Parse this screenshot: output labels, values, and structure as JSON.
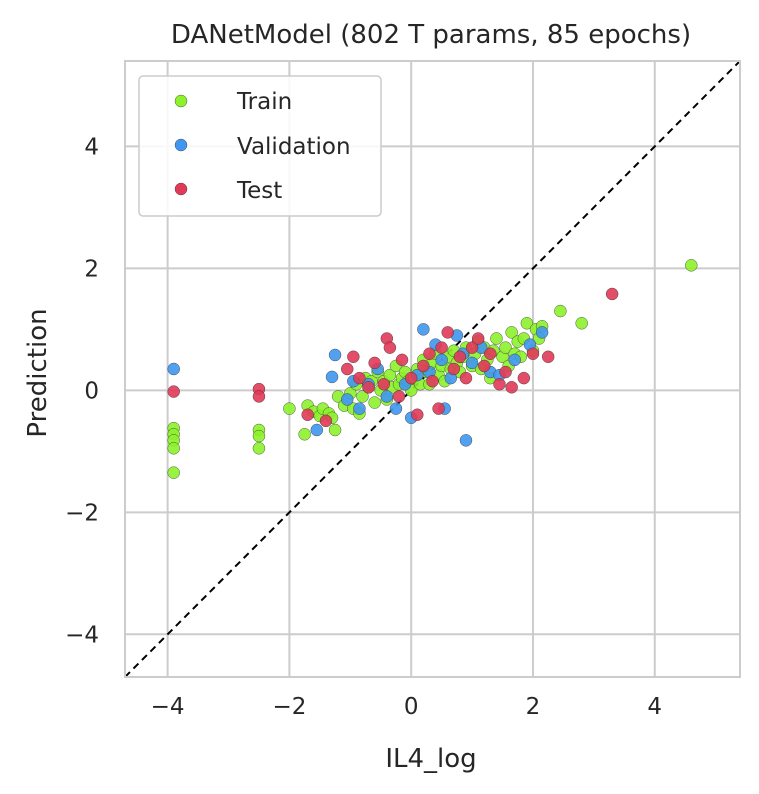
{
  "chart_data": {
    "type": "scatter",
    "title": "DANetModel (802 T params, 85 epochs)",
    "xlabel": "IL4_log",
    "ylabel": "Prediction",
    "xlim": [
      -4.7,
      5.4
    ],
    "ylim": [
      -4.7,
      5.4
    ],
    "xticks": [
      -4,
      -2,
      0,
      2,
      4
    ],
    "yticks": [
      -4,
      -2,
      0,
      2,
      4
    ],
    "xtick_labels": [
      "−4",
      "−2",
      "0",
      "2",
      "4"
    ],
    "ytick_labels": [
      "−4",
      "−2",
      "0",
      "2",
      "4"
    ],
    "grid": true,
    "legend_position": "top-left",
    "identity_line": true,
    "series": [
      {
        "name": "Train",
        "color": "#8cf22a",
        "points": [
          [
            -3.9,
            -0.62
          ],
          [
            -3.9,
            -0.72
          ],
          [
            -3.9,
            -0.82
          ],
          [
            -3.9,
            -0.95
          ],
          [
            -3.9,
            -1.35
          ],
          [
            -2.5,
            -0.65
          ],
          [
            -2.5,
            -0.75
          ],
          [
            -2.5,
            -0.95
          ],
          [
            -2.0,
            -0.3
          ],
          [
            -1.7,
            -0.25
          ],
          [
            -1.75,
            -0.72
          ],
          [
            -1.6,
            -0.35
          ],
          [
            -1.5,
            -0.42
          ],
          [
            -1.45,
            -0.3
          ],
          [
            -1.35,
            -0.38
          ],
          [
            -1.3,
            -0.45
          ],
          [
            -1.25,
            -0.65
          ],
          [
            -1.2,
            -0.1
          ],
          [
            -1.1,
            -0.25
          ],
          [
            -1.0,
            -0.05
          ],
          [
            -0.95,
            -0.3
          ],
          [
            -0.9,
            0.1
          ],
          [
            -0.85,
            -0.38
          ],
          [
            -0.8,
            -0.1
          ],
          [
            -0.75,
            0.2
          ],
          [
            -0.7,
            0.05
          ],
          [
            -0.65,
            0.15
          ],
          [
            -0.6,
            -0.2
          ],
          [
            -0.55,
            0.3
          ],
          [
            -0.5,
            0.0
          ],
          [
            -0.45,
            0.15
          ],
          [
            -0.4,
            -0.15
          ],
          [
            -0.35,
            0.25
          ],
          [
            -0.3,
            0.05
          ],
          [
            -0.25,
            0.4
          ],
          [
            -0.2,
            0.1
          ],
          [
            -0.15,
            0.2
          ],
          [
            -0.1,
            0.3
          ],
          [
            -0.05,
            0.15
          ],
          [
            0.0,
            0.0
          ],
          [
            0.05,
            0.2
          ],
          [
            0.1,
            0.35
          ],
          [
            0.15,
            0.1
          ],
          [
            0.2,
            0.5
          ],
          [
            0.25,
            0.3
          ],
          [
            0.3,
            0.1
          ],
          [
            0.35,
            0.45
          ],
          [
            0.4,
            0.6
          ],
          [
            0.45,
            0.25
          ],
          [
            0.5,
            0.4
          ],
          [
            0.55,
            0.15
          ],
          [
            0.6,
            0.55
          ],
          [
            0.65,
            0.35
          ],
          [
            0.7,
            0.65
          ],
          [
            0.75,
            0.45
          ],
          [
            0.8,
            0.3
          ],
          [
            0.85,
            0.55
          ],
          [
            0.9,
            0.7
          ],
          [
            1.0,
            0.4
          ],
          [
            1.05,
            0.6
          ],
          [
            1.1,
            0.8
          ],
          [
            1.15,
            0.35
          ],
          [
            1.2,
            0.7
          ],
          [
            1.25,
            0.5
          ],
          [
            1.3,
            0.2
          ],
          [
            1.35,
            0.65
          ],
          [
            1.4,
            0.85
          ],
          [
            1.5,
            0.55
          ],
          [
            1.55,
            0.7
          ],
          [
            1.6,
            0.4
          ],
          [
            1.65,
            0.95
          ],
          [
            1.7,
            0.6
          ],
          [
            1.75,
            0.8
          ],
          [
            1.8,
            0.55
          ],
          [
            1.85,
            0.85
          ],
          [
            1.9,
            1.1
          ],
          [
            2.0,
            0.65
          ],
          [
            2.05,
            1.0
          ],
          [
            2.1,
            0.85
          ],
          [
            2.15,
            1.05
          ],
          [
            2.45,
            1.3
          ],
          [
            2.8,
            1.1
          ],
          [
            4.6,
            2.05
          ]
        ]
      },
      {
        "name": "Validation",
        "color": "#3f97f0",
        "points": [
          [
            -3.9,
            0.35
          ],
          [
            -1.55,
            -0.65
          ],
          [
            -1.3,
            0.22
          ],
          [
            -1.25,
            0.58
          ],
          [
            -1.05,
            -0.15
          ],
          [
            -0.95,
            0.15
          ],
          [
            -0.85,
            -0.3
          ],
          [
            -0.7,
            0.1
          ],
          [
            -0.55,
            0.35
          ],
          [
            -0.4,
            -0.1
          ],
          [
            -0.25,
            -0.3
          ],
          [
            -0.1,
            0.1
          ],
          [
            0.0,
            -0.45
          ],
          [
            0.1,
            0.25
          ],
          [
            0.2,
            1.0
          ],
          [
            0.3,
            0.3
          ],
          [
            0.4,
            0.75
          ],
          [
            0.5,
            0.5
          ],
          [
            0.55,
            -0.3
          ],
          [
            0.65,
            0.2
          ],
          [
            0.75,
            0.9
          ],
          [
            0.85,
            0.6
          ],
          [
            0.9,
            -0.82
          ],
          [
            1.0,
            0.45
          ],
          [
            1.15,
            0.7
          ],
          [
            1.3,
            0.3
          ],
          [
            1.45,
            0.25
          ],
          [
            1.7,
            0.5
          ],
          [
            1.95,
            0.75
          ],
          [
            2.15,
            0.95
          ]
        ]
      },
      {
        "name": "Test",
        "color": "#e03a58",
        "points": [
          [
            -3.9,
            -0.02
          ],
          [
            -2.5,
            0.02
          ],
          [
            -2.5,
            -0.1
          ],
          [
            -1.7,
            -0.4
          ],
          [
            -1.4,
            -0.5
          ],
          [
            -1.05,
            0.35
          ],
          [
            -0.95,
            0.55
          ],
          [
            -0.85,
            0.2
          ],
          [
            -0.7,
            0.05
          ],
          [
            -0.6,
            0.45
          ],
          [
            -0.45,
            0.1
          ],
          [
            -0.4,
            0.85
          ],
          [
            -0.35,
            0.7
          ],
          [
            -0.2,
            -0.1
          ],
          [
            -0.15,
            0.5
          ],
          [
            0.0,
            0.2
          ],
          [
            0.1,
            -0.4
          ],
          [
            0.2,
            0.4
          ],
          [
            0.3,
            0.6
          ],
          [
            0.35,
            0.15
          ],
          [
            0.45,
            -0.3
          ],
          [
            0.5,
            0.7
          ],
          [
            0.6,
            0.95
          ],
          [
            0.7,
            0.35
          ],
          [
            0.8,
            0.55
          ],
          [
            0.9,
            0.2
          ],
          [
            1.0,
            0.7
          ],
          [
            1.1,
            0.85
          ],
          [
            1.2,
            0.4
          ],
          [
            1.3,
            0.6
          ],
          [
            1.45,
            0.1
          ],
          [
            1.55,
            0.3
          ],
          [
            1.65,
            0.05
          ],
          [
            1.85,
            0.2
          ],
          [
            2.0,
            0.6
          ],
          [
            2.25,
            0.55
          ],
          [
            3.3,
            1.58
          ]
        ]
      }
    ]
  }
}
